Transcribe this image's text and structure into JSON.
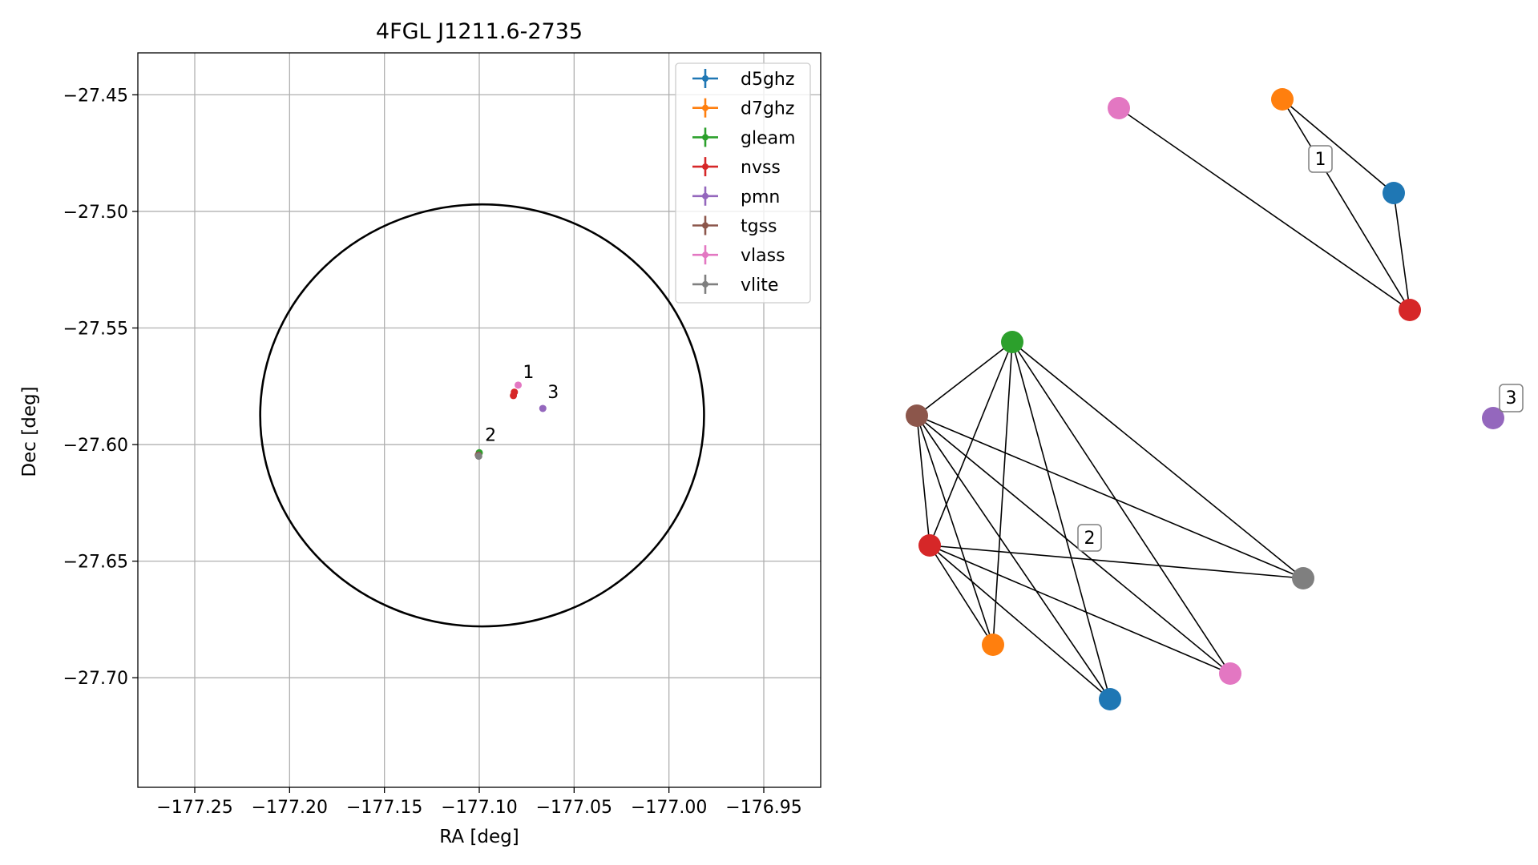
{
  "chart_data": [
    {
      "type": "scatter",
      "title": "4FGL J1211.6-2735",
      "xlabel": "RA [deg]",
      "ylabel": "Dec [deg]",
      "xlim": [
        -177.28,
        -176.92
      ],
      "ylim": [
        -27.747,
        -27.432
      ],
      "xticks": [
        -177.25,
        -177.2,
        -177.15,
        -177.1,
        -177.05,
        -177.0,
        -176.95
      ],
      "xtick_labels": [
        "−177.25",
        "−177.20",
        "−177.15",
        "−177.10",
        "−177.05",
        "−177.00",
        "−176.95"
      ],
      "yticks": [
        -27.45,
        -27.5,
        -27.55,
        -27.6,
        -27.65,
        -27.7
      ],
      "ytick_labels": [
        "−27.45",
        "−27.50",
        "−27.55",
        "−27.60",
        "−27.65",
        "−27.70"
      ],
      "grid": true,
      "legend_position": "top-right",
      "series": [
        {
          "name": "d5ghz",
          "color": "#1f77b4",
          "points": []
        },
        {
          "name": "d7ghz",
          "color": "#ff7f0e",
          "points": []
        },
        {
          "name": "gleam",
          "color": "#2ca02c",
          "points": [
            {
              "x": -177.1,
              "y": -27.6035
            }
          ]
        },
        {
          "name": "nvss",
          "color": "#d62728",
          "points": [
            {
              "x": -177.0815,
              "y": -27.5775
            },
            {
              "x": -177.082,
              "y": -27.579
            }
          ]
        },
        {
          "name": "pmn",
          "color": "#9467bd",
          "points": [
            {
              "x": -177.0665,
              "y": -27.5845
            }
          ]
        },
        {
          "name": "tgss",
          "color": "#8c564b",
          "points": [
            {
              "x": -177.1005,
              "y": -27.6045
            }
          ]
        },
        {
          "name": "vlass",
          "color": "#e377c2",
          "points": [
            {
              "x": -177.0795,
              "y": -27.5745
            }
          ]
        },
        {
          "name": "vlite",
          "color": "#7f7f7f",
          "points": [
            {
              "x": -177.1003,
              "y": -27.605
            }
          ]
        }
      ],
      "ellipse": {
        "center_x": -177.0985,
        "center_y": -27.5875,
        "semi_major_ra": 0.117,
        "semi_minor_dec": 0.0905
      },
      "annotations": [
        {
          "text": "1",
          "x": -177.077,
          "y": -27.5715
        },
        {
          "text": "3",
          "x": -177.064,
          "y": -27.58
        },
        {
          "text": "2",
          "x": -177.097,
          "y": -27.5985
        }
      ]
    },
    {
      "type": "network",
      "nodes": [
        {
          "id": "c1_vlass",
          "color": "#e377c2"
        },
        {
          "id": "c1_d7ghz",
          "color": "#ff7f0e"
        },
        {
          "id": "c1_d5ghz",
          "color": "#1f77b4"
        },
        {
          "id": "c1_nvss",
          "color": "#d62728"
        },
        {
          "id": "c3_pmn",
          "color": "#9467bd"
        },
        {
          "id": "c2_gleam",
          "color": "#2ca02c"
        },
        {
          "id": "c2_tgss",
          "color": "#8c564b"
        },
        {
          "id": "c2_nvss",
          "color": "#d62728"
        },
        {
          "id": "c2_d7ghz",
          "color": "#ff7f0e"
        },
        {
          "id": "c2_d5ghz",
          "color": "#1f77b4"
        },
        {
          "id": "c2_vlass",
          "color": "#e377c2"
        },
        {
          "id": "c2_vlite",
          "color": "#7f7f7f"
        }
      ],
      "edges": [
        [
          "c1_vlass",
          "c1_nvss"
        ],
        [
          "c1_d7ghz",
          "c1_d5ghz"
        ],
        [
          "c1_d7ghz",
          "c1_nvss"
        ],
        [
          "c1_d5ghz",
          "c1_nvss"
        ],
        [
          "c2_gleam",
          "c2_tgss"
        ],
        [
          "c2_gleam",
          "c2_nvss"
        ],
        [
          "c2_gleam",
          "c2_d7ghz"
        ],
        [
          "c2_gleam",
          "c2_d5ghz"
        ],
        [
          "c2_gleam",
          "c2_vlass"
        ],
        [
          "c2_gleam",
          "c2_vlite"
        ],
        [
          "c2_tgss",
          "c2_nvss"
        ],
        [
          "c2_tgss",
          "c2_d7ghz"
        ],
        [
          "c2_tgss",
          "c2_d5ghz"
        ],
        [
          "c2_tgss",
          "c2_vlass"
        ],
        [
          "c2_tgss",
          "c2_vlite"
        ],
        [
          "c2_nvss",
          "c2_d7ghz"
        ],
        [
          "c2_nvss",
          "c2_d5ghz"
        ],
        [
          "c2_nvss",
          "c2_vlass"
        ],
        [
          "c2_nvss",
          "c2_vlite"
        ]
      ],
      "labels": [
        {
          "text": "1"
        },
        {
          "text": "2"
        },
        {
          "text": "3"
        }
      ]
    }
  ]
}
